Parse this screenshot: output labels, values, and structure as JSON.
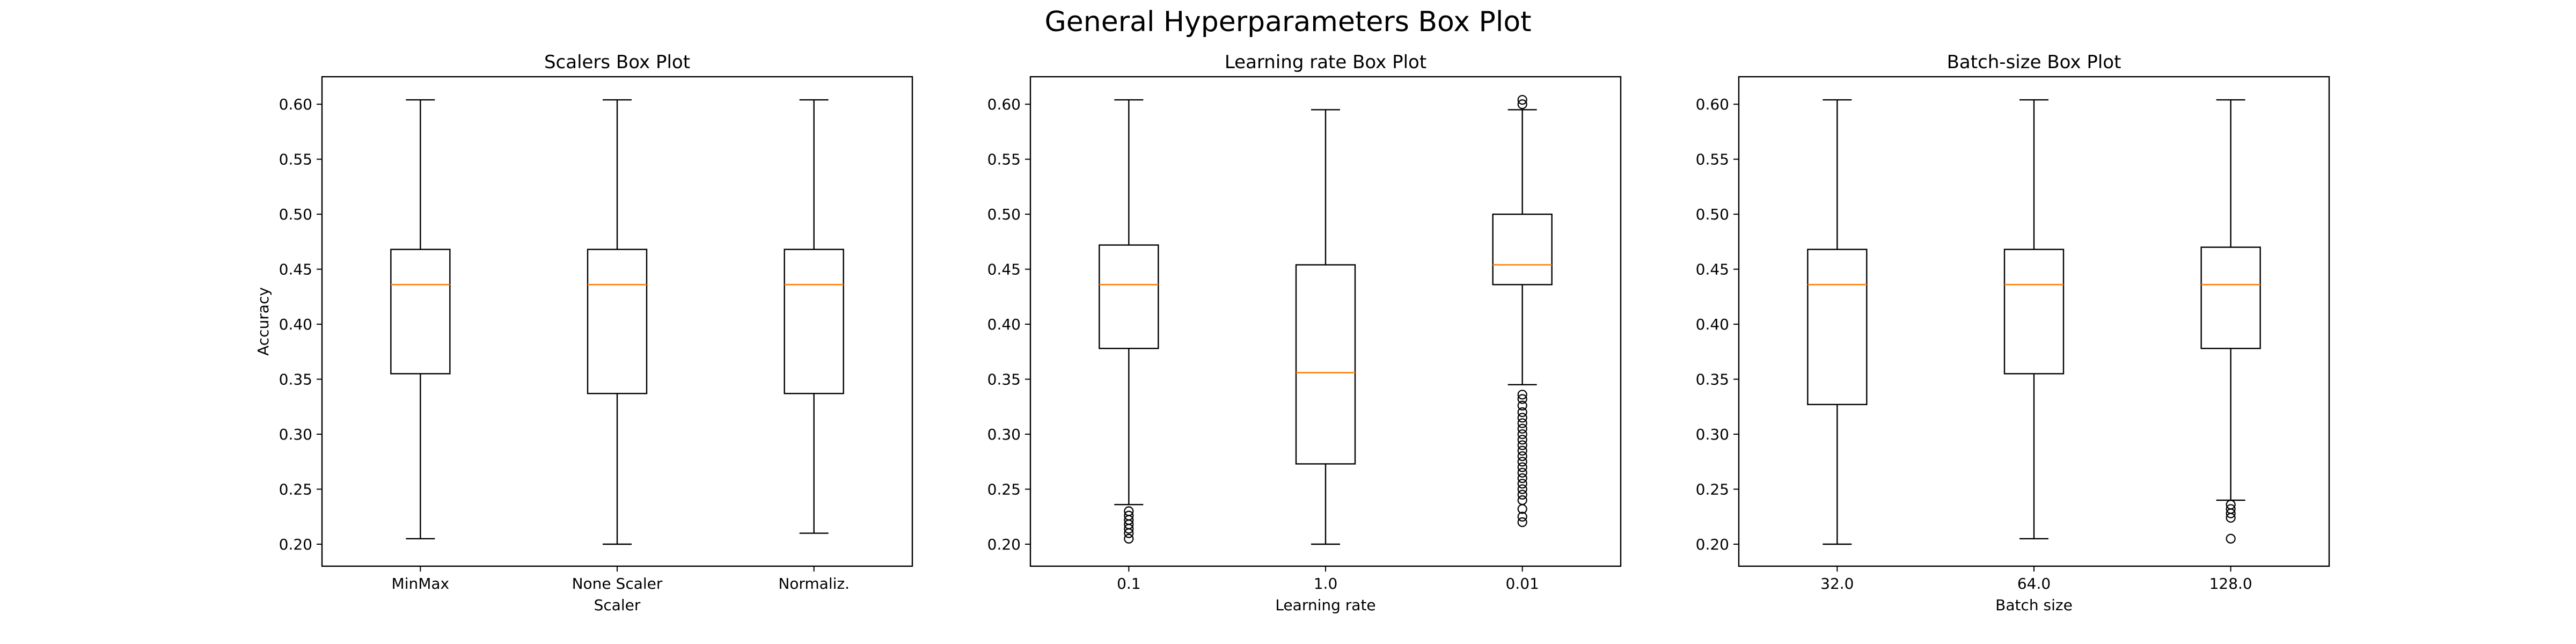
{
  "figure_title": "General Hyperparameters Box Plot",
  "chart_data": [
    {
      "type": "box",
      "title": "Scalers Box Plot",
      "xlabel": "Scaler",
      "ylabel": "Accuracy",
      "ylim": [
        0.18,
        0.625
      ],
      "yticks": [
        "0.20",
        "0.25",
        "0.30",
        "0.35",
        "0.40",
        "0.45",
        "0.50",
        "0.55",
        "0.60"
      ],
      "categories": [
        "MinMax",
        "None Scaler",
        "Normaliz."
      ],
      "boxes": [
        {
          "whisker_low": 0.205,
          "q1": 0.355,
          "median": 0.436,
          "q3": 0.468,
          "whisker_high": 0.604,
          "outliers": []
        },
        {
          "whisker_low": 0.2,
          "q1": 0.337,
          "median": 0.436,
          "q3": 0.468,
          "whisker_high": 0.604,
          "outliers": []
        },
        {
          "whisker_low": 0.21,
          "q1": 0.337,
          "median": 0.436,
          "q3": 0.468,
          "whisker_high": 0.604,
          "outliers": []
        }
      ],
      "colors": {
        "box": "#000000",
        "median": "#ff7f0e"
      }
    },
    {
      "type": "box",
      "title": "Learning rate Box Plot",
      "xlabel": "Learning rate",
      "ylabel": "",
      "ylim": [
        0.18,
        0.625
      ],
      "yticks": [
        "0.20",
        "0.25",
        "0.30",
        "0.35",
        "0.40",
        "0.45",
        "0.50",
        "0.55",
        "0.60"
      ],
      "categories": [
        "0.1",
        "1.0",
        "0.01"
      ],
      "boxes": [
        {
          "whisker_low": 0.236,
          "q1": 0.378,
          "median": 0.436,
          "q3": 0.472,
          "whisker_high": 0.604,
          "outliers": [
            0.205,
            0.21,
            0.214,
            0.218,
            0.222,
            0.226,
            0.23
          ]
        },
        {
          "whisker_low": 0.2,
          "q1": 0.273,
          "median": 0.356,
          "q3": 0.454,
          "whisker_high": 0.595,
          "outliers": []
        },
        {
          "whisker_low": 0.345,
          "q1": 0.436,
          "median": 0.454,
          "q3": 0.5,
          "whisker_high": 0.595,
          "outliers": [
            0.22,
            0.225,
            0.232,
            0.24,
            0.245,
            0.25,
            0.255,
            0.26,
            0.265,
            0.27,
            0.275,
            0.28,
            0.285,
            0.29,
            0.295,
            0.3,
            0.305,
            0.31,
            0.315,
            0.32,
            0.326,
            0.332,
            0.336,
            0.6,
            0.604
          ]
        }
      ],
      "colors": {
        "box": "#000000",
        "median": "#ff7f0e"
      }
    },
    {
      "type": "box",
      "title": "Batch-size Box Plot",
      "xlabel": "Batch size",
      "ylabel": "",
      "ylim": [
        0.18,
        0.625
      ],
      "yticks": [
        "0.20",
        "0.25",
        "0.30",
        "0.35",
        "0.40",
        "0.45",
        "0.50",
        "0.55",
        "0.60"
      ],
      "categories": [
        "32.0",
        "64.0",
        "128.0"
      ],
      "boxes": [
        {
          "whisker_low": 0.2,
          "q1": 0.327,
          "median": 0.436,
          "q3": 0.468,
          "whisker_high": 0.604,
          "outliers": []
        },
        {
          "whisker_low": 0.205,
          "q1": 0.355,
          "median": 0.436,
          "q3": 0.468,
          "whisker_high": 0.604,
          "outliers": []
        },
        {
          "whisker_low": 0.24,
          "q1": 0.378,
          "median": 0.436,
          "q3": 0.47,
          "whisker_high": 0.604,
          "outliers": [
            0.205,
            0.224,
            0.228,
            0.232,
            0.236
          ]
        }
      ],
      "colors": {
        "box": "#000000",
        "median": "#ff7f0e"
      }
    }
  ]
}
